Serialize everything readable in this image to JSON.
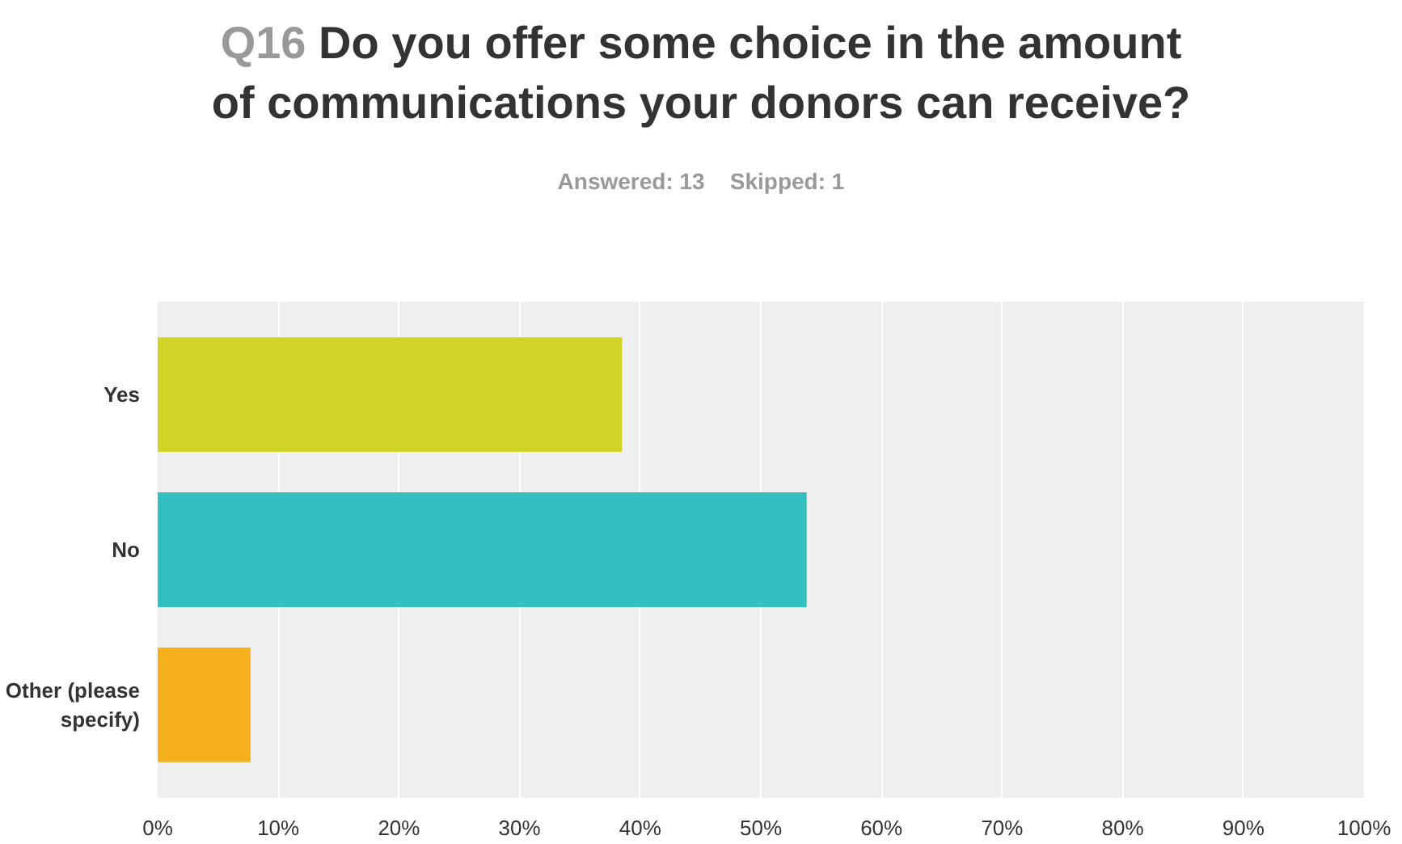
{
  "chart_data": {
    "type": "bar",
    "orientation": "horizontal",
    "title": "Q16 Do you offer some choice in the amount of communications your donors can receive?",
    "subtitle": "Answered: 13    Skipped: 1",
    "categories": [
      "Yes",
      "No",
      "Other (please specify)"
    ],
    "values": [
      38.5,
      53.8,
      7.7
    ],
    "colors": [
      "#cfd427",
      "#34bfc0",
      "#f6b01e"
    ],
    "xlim": [
      0,
      100
    ],
    "xticks": [
      {
        "value": 0,
        "label": "0%"
      },
      {
        "value": 10,
        "label": "10%"
      },
      {
        "value": 20,
        "label": "20%"
      },
      {
        "value": 30,
        "label": "30%"
      },
      {
        "value": 40,
        "label": "40%"
      },
      {
        "value": 50,
        "label": "50%"
      },
      {
        "value": 60,
        "label": "60%"
      },
      {
        "value": 70,
        "label": "70%"
      },
      {
        "value": 80,
        "label": "80%"
      },
      {
        "value": 90,
        "label": "90%"
      },
      {
        "value": 100,
        "label": "100%"
      }
    ],
    "grid": "x"
  }
}
